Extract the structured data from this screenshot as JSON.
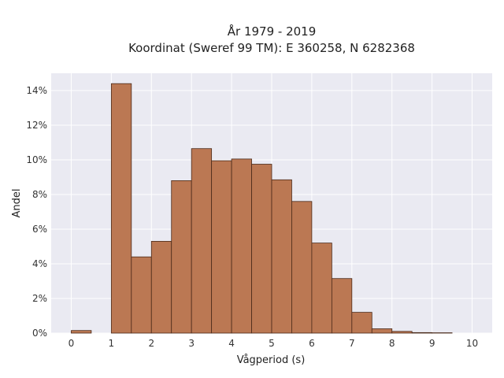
{
  "chart_data": {
    "type": "bar",
    "title_line1": "År 1979 - 2019",
    "title_line2": "Koordinat (Sweref 99 TM): E 360258, N 6282368",
    "xlabel": "Vågperiod (s)",
    "ylabel": "Andel",
    "xlim": [
      -0.5,
      10.5
    ],
    "ylim": [
      0,
      15
    ],
    "grid": true,
    "x_ticks": [
      "0",
      "1",
      "2",
      "3",
      "4",
      "5",
      "6",
      "7",
      "8",
      "9",
      "10"
    ],
    "y_ticks": [
      "0%",
      "2%",
      "4%",
      "6%",
      "8%",
      "10%",
      "12%",
      "14%"
    ],
    "bin_width": 0.5,
    "bins": [
      {
        "start": 0.0,
        "value": 0.15
      },
      {
        "start": 0.5,
        "value": 0.0
      },
      {
        "start": 1.0,
        "value": 14.4
      },
      {
        "start": 1.5,
        "value": 4.4
      },
      {
        "start": 2.0,
        "value": 5.3
      },
      {
        "start": 2.5,
        "value": 8.8
      },
      {
        "start": 3.0,
        "value": 10.65
      },
      {
        "start": 3.5,
        "value": 9.95
      },
      {
        "start": 4.0,
        "value": 10.05
      },
      {
        "start": 4.5,
        "value": 9.75
      },
      {
        "start": 5.0,
        "value": 8.85
      },
      {
        "start": 5.5,
        "value": 7.6
      },
      {
        "start": 6.0,
        "value": 5.2
      },
      {
        "start": 6.5,
        "value": 3.15
      },
      {
        "start": 7.0,
        "value": 1.2
      },
      {
        "start": 7.5,
        "value": 0.25
      },
      {
        "start": 8.0,
        "value": 0.1
      },
      {
        "start": 8.5,
        "value": 0.03
      },
      {
        "start": 9.0,
        "value": 0.02
      }
    ],
    "colors": {
      "bar_fill": "#bb7853",
      "bar_edge": "#4a2a1a",
      "plot_bg": "#eaeaf2",
      "grid": "#ffffff"
    }
  }
}
